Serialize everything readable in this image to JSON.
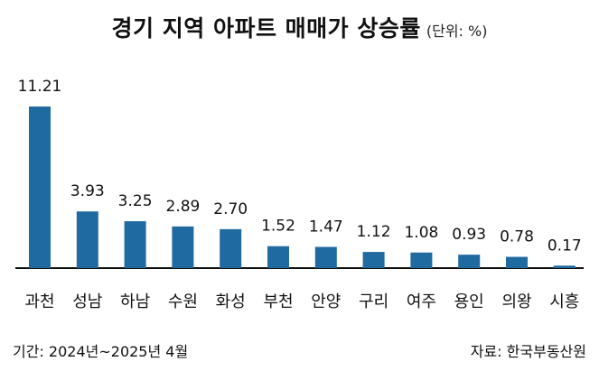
{
  "title": "경기 지역 아파트 매매가 상승률",
  "unit": "(단위: %)",
  "footer": {
    "period": "기간: 2024년~2025년 4월",
    "source": "자료: 한국부동산원"
  },
  "colors": {
    "bar": "#1f6aa0",
    "axis": "#111111",
    "text": "#111111"
  },
  "chart_data": {
    "type": "bar",
    "title": "경기 지역 아파트 매매가 상승률",
    "categories": [
      "과천",
      "성남",
      "하남",
      "수원",
      "화성",
      "부천",
      "안양",
      "구리",
      "여주",
      "용인",
      "의왕",
      "시흥"
    ],
    "values": [
      11.21,
      3.93,
      3.25,
      2.89,
      2.7,
      1.52,
      1.47,
      1.12,
      1.08,
      0.93,
      0.78,
      0.17
    ],
    "value_labels": [
      "11.21",
      "3.93",
      "3.25",
      "2.89",
      "2.70",
      "1.52",
      "1.47",
      "1.12",
      "1.08",
      "0.93",
      "0.78",
      "0.17"
    ],
    "ylim": [
      0,
      11.21
    ],
    "grid": false,
    "legend": "none"
  }
}
